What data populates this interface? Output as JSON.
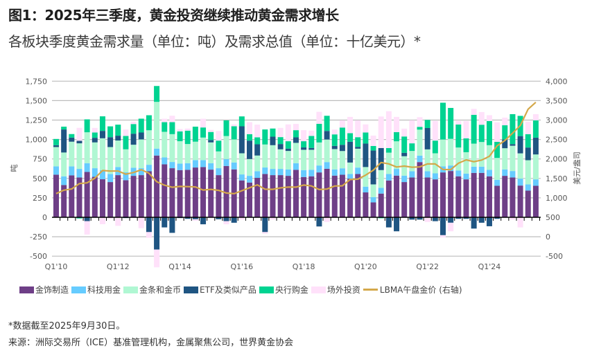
{
  "title": "图1：2025年三季度，黄金投资继续推动黄金需求增长",
  "subtitle": "各板块季度黄金需求量（单位：吨）及需求总值（单位：十亿美元）*",
  "footnote": "*数据截至2025年9月30日。",
  "source": "来源：洲际交易所（ICE）基准管理机构，金属聚焦公司，世界黄金协会",
  "chart_data": {
    "type": "bar",
    "stacked": true,
    "ylabel": "吨",
    "y2label": "美元/盎司",
    "ylim": [
      -500,
      1750
    ],
    "y2lim": [
      -500,
      4000
    ],
    "yticks": [
      "1,750",
      "1,500",
      "1,250",
      "1,000",
      "750",
      "500",
      "250",
      "0",
      "-250",
      "-500"
    ],
    "y2ticks": [
      "4,000",
      "3,500",
      "3,000",
      "2,500",
      "2,000",
      "1,500",
      "1,000",
      "500",
      "0",
      "-500"
    ],
    "grid": true,
    "legend_position": "bottom",
    "categories": [
      "Q1'10",
      "Q2'10",
      "Q3'10",
      "Q4'10",
      "Q1'11",
      "Q2'11",
      "Q3'11",
      "Q4'11",
      "Q1'12",
      "Q2'12",
      "Q3'12",
      "Q4'12",
      "Q1'13",
      "Q2'13",
      "Q3'13",
      "Q4'13",
      "Q1'14",
      "Q2'14",
      "Q3'14",
      "Q4'14",
      "Q1'15",
      "Q2'15",
      "Q3'15",
      "Q4'15",
      "Q1'16",
      "Q2'16",
      "Q3'16",
      "Q4'16",
      "Q1'17",
      "Q2'17",
      "Q3'17",
      "Q4'17",
      "Q1'18",
      "Q2'18",
      "Q3'18",
      "Q4'18",
      "Q1'19",
      "Q2'19",
      "Q3'19",
      "Q4'19",
      "Q1'20",
      "Q2'20",
      "Q3'20",
      "Q4'20",
      "Q1'21",
      "Q2'21",
      "Q3'21",
      "Q4'21",
      "Q1'22",
      "Q2'22",
      "Q3'22",
      "Q4'22",
      "Q1'23",
      "Q2'23",
      "Q3'23",
      "Q4'23",
      "Q1'24",
      "Q2'24",
      "Q3'24",
      "Q4'24",
      "Q1'25",
      "Q2'25",
      "Q3'25"
    ],
    "xtick_labels": [
      "Q1'10",
      "Q1'12",
      "Q1'14",
      "Q1'16",
      "Q1'18",
      "Q1'20",
      "Q1'22",
      "Q1'24"
    ],
    "series": [
      {
        "name": "金饰制造",
        "color": "#6e3f87",
        "values": [
          548,
          415,
          539,
          512,
          583,
          521,
          489,
          453,
          542,
          477,
          533,
          542,
          592,
          794,
          681,
          631,
          607,
          610,
          640,
          646,
          613,
          542,
          660,
          616,
          474,
          447,
          507,
          557,
          542,
          542,
          533,
          610,
          518,
          527,
          577,
          624,
          536,
          547,
          497,
          556,
          320,
          192,
          305,
          473,
          536,
          453,
          512,
          710,
          512,
          488,
          577,
          595,
          527,
          488,
          571,
          571,
          527,
          405,
          533,
          512,
          408,
          343,
          405
        ]
      },
      {
        "name": "科技用金",
        "color": "#66ccff",
        "values": [
          107,
          112,
          116,
          110,
          113,
          110,
          118,
          104,
          104,
          101,
          104,
          89,
          83,
          89,
          89,
          80,
          83,
          86,
          95,
          89,
          83,
          89,
          89,
          89,
          77,
          86,
          86,
          83,
          80,
          80,
          83,
          86,
          89,
          83,
          89,
          86,
          80,
          83,
          59,
          83,
          74,
          68,
          74,
          83,
          86,
          83,
          80,
          83,
          80,
          77,
          77,
          71,
          74,
          74,
          80,
          80,
          83,
          77,
          83,
          83,
          89,
          80,
          83
        ]
      },
      {
        "name": "金条和金币",
        "color": "#b0f7d3",
        "values": [
          248,
          306,
          317,
          329,
          397,
          332,
          409,
          346,
          341,
          296,
          296,
          370,
          444,
          601,
          329,
          358,
          288,
          246,
          237,
          290,
          267,
          216,
          296,
          296,
          272,
          216,
          201,
          296,
          305,
          252,
          237,
          261,
          261,
          258,
          296,
          290,
          261,
          222,
          148,
          243,
          252,
          163,
          228,
          275,
          355,
          249,
          261,
          334,
          281,
          258,
          346,
          343,
          296,
          275,
          296,
          317,
          317,
          281,
          272,
          325,
          325,
          311,
          320
        ]
      },
      {
        "name": "ETF及类似产品",
        "color": "#1f5582",
        "values": [
          24,
          296,
          53,
          33,
          -50,
          59,
          95,
          127,
          62,
          -10,
          142,
          89,
          -190,
          -415,
          -130,
          -200,
          -10,
          -20,
          -25,
          -90,
          30,
          -25,
          -50,
          -70,
          347,
          237,
          145,
          -190,
          110,
          68,
          30,
          71,
          30,
          24,
          -118,
          110,
          41,
          80,
          267,
          24,
          302,
          435,
          284,
          -130,
          -180,
          44,
          -30,
          -30,
          275,
          -50,
          -230,
          -70,
          -20,
          -20,
          -145,
          -70,
          -115,
          -20,
          112,
          21,
          222,
          163,
          216
        ]
      },
      {
        "name": "央行购金",
        "color": "#00d391",
        "values": [
          80,
          36,
          45,
          -15,
          166,
          68,
          187,
          139,
          142,
          172,
          124,
          178,
          193,
          204,
          124,
          154,
          127,
          172,
          193,
          130,
          104,
          139,
          201,
          169,
          127,
          83,
          89,
          193,
          104,
          89,
          95,
          92,
          80,
          154,
          240,
          195,
          148,
          222,
          110,
          124,
          142,
          59,
          -12,
          59,
          118,
          210,
          98,
          36,
          104,
          163,
          473,
          397,
          296,
          178,
          370,
          222,
          311,
          207,
          183,
          385,
          260,
          172,
          222
        ]
      },
      {
        "name": "场外投资",
        "color": "#ffe1fa",
        "values": [
          -5,
          -5,
          0,
          166,
          -172,
          59,
          -89,
          -15,
          -110,
          83,
          30,
          -140,
          -74,
          -228,
          44,
          83,
          30,
          27,
          -20,
          112,
          27,
          124,
          -40,
          24,
          -30,
          154,
          163,
          -20,
          -30,
          118,
          216,
          80,
          142,
          68,
          154,
          -60,
          62,
          92,
          210,
          216,
          104,
          133,
          405,
          474,
          196,
          101,
          296,
          124,
          -60,
          252,
          -30,
          -110,
          44,
          222,
          77,
          163,
          74,
          252,
          98,
          -30,
          -130,
          160,
          80
        ]
      }
    ],
    "line_series": {
      "name": "LBMA午盘金价 (右轴)",
      "color": "#d4a84a",
      "axis": "right",
      "values": [
        1109,
        1197,
        1227,
        1367,
        1386,
        1506,
        1702,
        1688,
        1691,
        1609,
        1652,
        1722,
        1632,
        1415,
        1326,
        1272,
        1293,
        1288,
        1282,
        1201,
        1218,
        1192,
        1124,
        1106,
        1183,
        1260,
        1335,
        1222,
        1219,
        1257,
        1278,
        1275,
        1329,
        1306,
        1213,
        1226,
        1304,
        1310,
        1472,
        1481,
        1583,
        1711,
        1909,
        1874,
        1794,
        1816,
        1789,
        1795,
        1874,
        1871,
        1729,
        1726,
        1890,
        1976,
        1929,
        1971,
        2070,
        2338,
        2474,
        2663,
        2860,
        3280,
        3457
      ]
    }
  }
}
